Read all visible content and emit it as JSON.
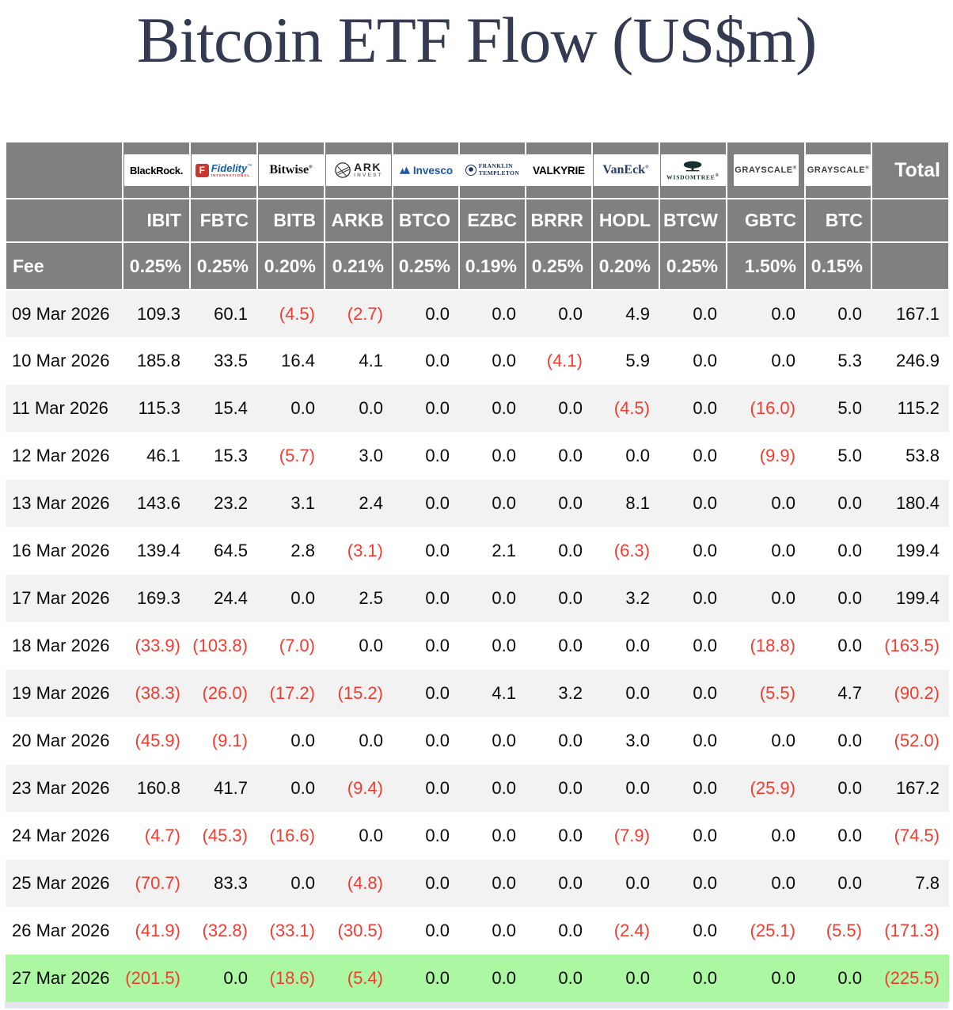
{
  "title": "Bitcoin ETF Flow (US$m)",
  "header": {
    "fee_label": "Fee",
    "total_label": "Total"
  },
  "colors": {
    "header_gray": "#808080",
    "stripe_gray": "#f2f2f2",
    "negative_red": "#f43b30",
    "highlight_green": "#abf7a2",
    "title_navy": "#333a52",
    "bottom_strip": "#e4e6f0"
  },
  "chart_data": {
    "type": "table",
    "providers": [
      {
        "key": "blackrock",
        "logo_text": "BlackRock.",
        "ticker": "IBIT",
        "fee": "0.25%"
      },
      {
        "key": "fidelity",
        "logo_text": "Fidelity",
        "logo_letter": "F",
        "logo_sub": "INTERNATIONAL",
        "ticker": "FBTC",
        "fee": "0.25%"
      },
      {
        "key": "bitwise",
        "logo_text": "Bitwise",
        "ticker": "BITB",
        "fee": "0.20%"
      },
      {
        "key": "ark",
        "logo_text": "ARK",
        "logo_sub": "INVEST",
        "ticker": "ARKB",
        "fee": "0.21%"
      },
      {
        "key": "invesco",
        "logo_text": "Invesco",
        "ticker": "BTCO",
        "fee": "0.25%"
      },
      {
        "key": "franklin",
        "logo_text": "FRANKLIN",
        "logo_sub": "TEMPLETON",
        "ticker": "EZBC",
        "fee": "0.19%"
      },
      {
        "key": "valkyrie",
        "logo_text": "VALKYRIE",
        "ticker": "BRRR",
        "fee": "0.25%"
      },
      {
        "key": "vaneck",
        "logo_text": "VanEck",
        "ticker": "HODL",
        "fee": "0.20%"
      },
      {
        "key": "wisdomtree",
        "logo_text": "WISDOMTREE",
        "ticker": "BTCW",
        "fee": "0.25%"
      },
      {
        "key": "grayscale",
        "logo_text": "GRAYSCALE",
        "ticker": "GBTC",
        "fee": "1.50%"
      },
      {
        "key": "grayscale2",
        "logo_text": "GRAYSCALE",
        "ticker": "BTC",
        "fee": "0.15%"
      }
    ],
    "rows": [
      {
        "date": "09 Mar 2026",
        "values": [
          "109.3",
          "60.1",
          "(4.5)",
          "(2.7)",
          "0.0",
          "0.0",
          "0.0",
          "4.9",
          "0.0",
          "0.0",
          "0.0"
        ],
        "total": "167.1",
        "highlight": false
      },
      {
        "date": "10 Mar 2026",
        "values": [
          "185.8",
          "33.5",
          "16.4",
          "4.1",
          "0.0",
          "0.0",
          "(4.1)",
          "5.9",
          "0.0",
          "0.0",
          "5.3"
        ],
        "total": "246.9",
        "highlight": false
      },
      {
        "date": "11 Mar 2026",
        "values": [
          "115.3",
          "15.4",
          "0.0",
          "0.0",
          "0.0",
          "0.0",
          "0.0",
          "(4.5)",
          "0.0",
          "(16.0)",
          "5.0"
        ],
        "total": "115.2",
        "highlight": false
      },
      {
        "date": "12 Mar 2026",
        "values": [
          "46.1",
          "15.3",
          "(5.7)",
          "3.0",
          "0.0",
          "0.0",
          "0.0",
          "0.0",
          "0.0",
          "(9.9)",
          "5.0"
        ],
        "total": "53.8",
        "highlight": false
      },
      {
        "date": "13 Mar 2026",
        "values": [
          "143.6",
          "23.2",
          "3.1",
          "2.4",
          "0.0",
          "0.0",
          "0.0",
          "8.1",
          "0.0",
          "0.0",
          "0.0"
        ],
        "total": "180.4",
        "highlight": false
      },
      {
        "date": "16 Mar 2026",
        "values": [
          "139.4",
          "64.5",
          "2.8",
          "(3.1)",
          "0.0",
          "2.1",
          "0.0",
          "(6.3)",
          "0.0",
          "0.0",
          "0.0"
        ],
        "total": "199.4",
        "highlight": false
      },
      {
        "date": "17 Mar 2026",
        "values": [
          "169.3",
          "24.4",
          "0.0",
          "2.5",
          "0.0",
          "0.0",
          "0.0",
          "3.2",
          "0.0",
          "0.0",
          "0.0"
        ],
        "total": "199.4",
        "highlight": false
      },
      {
        "date": "18 Mar 2026",
        "values": [
          "(33.9)",
          "(103.8)",
          "(7.0)",
          "0.0",
          "0.0",
          "0.0",
          "0.0",
          "0.0",
          "0.0",
          "(18.8)",
          "0.0"
        ],
        "total": "(163.5)",
        "highlight": false
      },
      {
        "date": "19 Mar 2026",
        "values": [
          "(38.3)",
          "(26.0)",
          "(17.2)",
          "(15.2)",
          "0.0",
          "4.1",
          "3.2",
          "0.0",
          "0.0",
          "(5.5)",
          "4.7"
        ],
        "total": "(90.2)",
        "highlight": false
      },
      {
        "date": "20 Mar 2026",
        "values": [
          "(45.9)",
          "(9.1)",
          "0.0",
          "0.0",
          "0.0",
          "0.0",
          "0.0",
          "3.0",
          "0.0",
          "0.0",
          "0.0"
        ],
        "total": "(52.0)",
        "highlight": false
      },
      {
        "date": "23 Mar 2026",
        "values": [
          "160.8",
          "41.7",
          "0.0",
          "(9.4)",
          "0.0",
          "0.0",
          "0.0",
          "0.0",
          "0.0",
          "(25.9)",
          "0.0"
        ],
        "total": "167.2",
        "highlight": false
      },
      {
        "date": "24 Mar 2026",
        "values": [
          "(4.7)",
          "(45.3)",
          "(16.6)",
          "0.0",
          "0.0",
          "0.0",
          "0.0",
          "(7.9)",
          "0.0",
          "0.0",
          "0.0"
        ],
        "total": "(74.5)",
        "highlight": false
      },
      {
        "date": "25 Mar 2026",
        "values": [
          "(70.7)",
          "83.3",
          "0.0",
          "(4.8)",
          "0.0",
          "0.0",
          "0.0",
          "0.0",
          "0.0",
          "0.0",
          "0.0"
        ],
        "total": "7.8",
        "highlight": false
      },
      {
        "date": "26 Mar 2026",
        "values": [
          "(41.9)",
          "(32.8)",
          "(33.1)",
          "(30.5)",
          "0.0",
          "0.0",
          "0.0",
          "(2.4)",
          "0.0",
          "(25.1)",
          "(5.5)"
        ],
        "total": "(171.3)",
        "highlight": false
      },
      {
        "date": "27 Mar 2026",
        "values": [
          "(201.5)",
          "0.0",
          "(18.6)",
          "(5.4)",
          "0.0",
          "0.0",
          "0.0",
          "0.0",
          "0.0",
          "0.0",
          "0.0"
        ],
        "total": "(225.5)",
        "highlight": true
      }
    ]
  }
}
